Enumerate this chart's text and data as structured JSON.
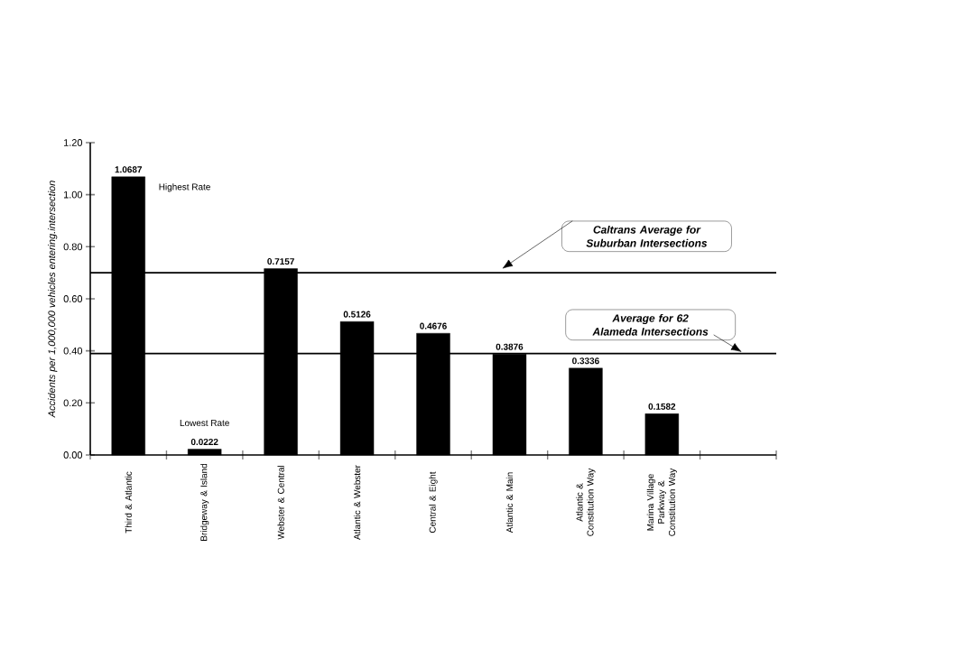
{
  "chart_data": {
    "type": "bar",
    "ylabel": "Accidents per 1,000,000 vehicles entering.intersection",
    "categories": [
      "Third & Atlantic",
      "Bridgeway & Island",
      "Webster & Central",
      "Atlantic & Webster",
      "Central & Eight",
      "Atlantic & Main",
      "Atlantic & Constitution Way",
      "Marina Village Parkway & Constitution Way",
      null
    ],
    "values": [
      1.0687,
      0.0222,
      0.7157,
      0.5126,
      0.4676,
      0.3876,
      0.3336,
      0.1582,
      null
    ],
    "color": "#000000",
    "data_labels": true,
    "ylim": [
      0,
      1.2
    ],
    "yticks": [
      {
        "value": 0,
        "label": "0.00"
      },
      {
        "value": 0.2,
        "label": "0.20"
      },
      {
        "value": 0.4,
        "label": "0.40"
      },
      {
        "value": 0.6,
        "label": "0.60"
      },
      {
        "value": 0.8,
        "label": "0.80"
      },
      {
        "value": 1.0,
        "label": "1.00"
      },
      {
        "value": 1.2,
        "label": "1.20"
      }
    ],
    "ref_lines": [
      {
        "axis": "y",
        "value": 0.7,
        "label": "Caltrans Average for Suburban Intersections"
      },
      {
        "axis": "y",
        "value": 0.39,
        "label": "Average for 62 Alameda Intersections"
      }
    ],
    "annotations": [
      "Highest Rate",
      "Lowest Rate"
    ],
    "grid": false
  }
}
